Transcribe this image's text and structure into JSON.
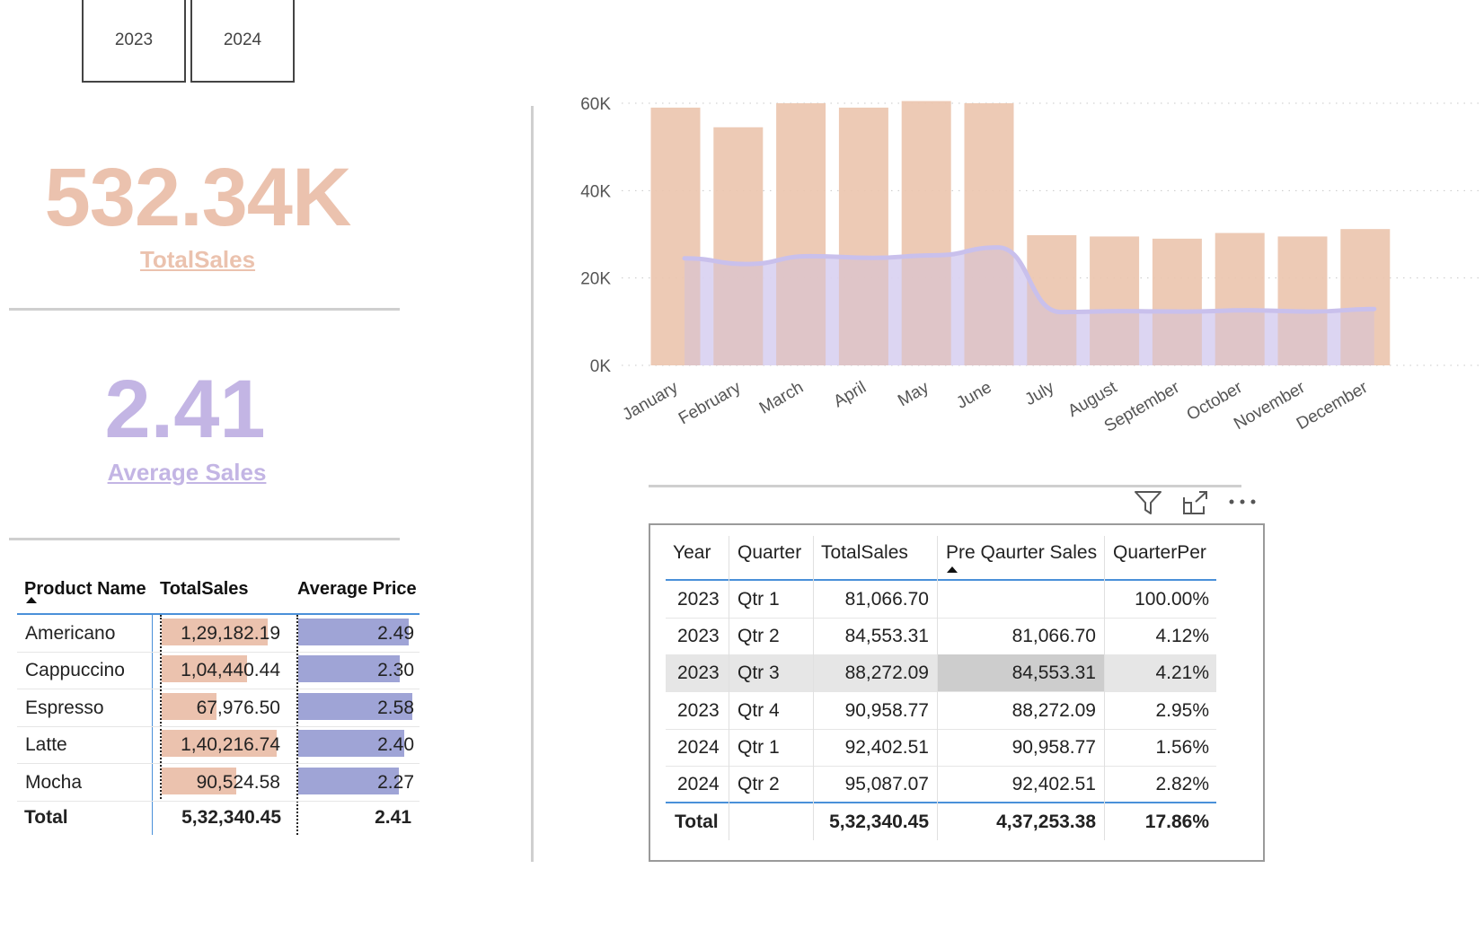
{
  "slicer": {
    "years": [
      "2023",
      "2024"
    ]
  },
  "kpi_total": {
    "value": "532.34K",
    "label": "TotalSales",
    "color": "#EBC2AE"
  },
  "kpi_avg": {
    "value": "2.41",
    "label": "Average Sales",
    "color": "#C3B5E4"
  },
  "product_table": {
    "headers": [
      "Product Name",
      "TotalSales",
      "Average Price"
    ],
    "rows": [
      {
        "name": "Americano",
        "sales": "1,29,182.19",
        "sales_fill": 0.92,
        "avg": "2.49",
        "avg_fill": 0.97
      },
      {
        "name": "Cappuccino",
        "sales": "1,04,440.44",
        "sales_fill": 0.74,
        "avg": "2.30",
        "avg_fill": 0.89
      },
      {
        "name": "Espresso",
        "sales": "67,976.50",
        "sales_fill": 0.48,
        "avg": "2.58",
        "avg_fill": 1.0
      },
      {
        "name": "Latte",
        "sales": "1,40,216.74",
        "sales_fill": 1.0,
        "avg": "2.40",
        "avg_fill": 0.93
      },
      {
        "name": "Mocha",
        "sales": "90,524.58",
        "sales_fill": 0.65,
        "avg": "2.27",
        "avg_fill": 0.88
      }
    ],
    "total": {
      "label": "Total",
      "sales": "5,32,340.45",
      "avg": "2.41"
    },
    "sales_bar_color": "#EBC2AE",
    "avg_bar_color": "#9FA4D6"
  },
  "chart_data": {
    "type": "bar",
    "categories": [
      "January",
      "February",
      "March",
      "April",
      "May",
      "June",
      "July",
      "August",
      "September",
      "October",
      "November",
      "December"
    ],
    "series": [
      {
        "values": [
          59000,
          54500,
          60000,
          59000,
          60500,
          60000,
          29800,
          29500,
          29000,
          30300,
          29500,
          31200
        ],
        "color": "#EBC5AF"
      },
      {
        "type": "line",
        "values": [
          24500,
          23200,
          25000,
          24600,
          25200,
          27000,
          12200,
          12400,
          12300,
          12600,
          12300,
          12900
        ],
        "color": "#C9C0EC"
      }
    ],
    "yticks": [
      "0K",
      "20K",
      "40K",
      "60K"
    ],
    "ylim": [
      0,
      62000
    ],
    "grid": true
  },
  "quarter_table": {
    "headers": [
      "Year",
      "Quarter",
      "TotalSales",
      "Pre Qaurter Sales",
      "QuarterPer"
    ],
    "rows": [
      {
        "year": "2023",
        "quarter": "Qtr 1",
        "sales": "81,066.70",
        "pre": "",
        "per": "100.00%"
      },
      {
        "year": "2023",
        "quarter": "Qtr 2",
        "sales": "84,553.31",
        "pre": "81,066.70",
        "per": "4.12%"
      },
      {
        "year": "2023",
        "quarter": "Qtr 3",
        "sales": "88,272.09",
        "pre": "84,553.31",
        "per": "4.21%"
      },
      {
        "year": "2023",
        "quarter": "Qtr 4",
        "sales": "90,958.77",
        "pre": "88,272.09",
        "per": "2.95%"
      },
      {
        "year": "2024",
        "quarter": "Qtr 1",
        "sales": "92,402.51",
        "pre": "90,958.77",
        "per": "1.56%"
      },
      {
        "year": "2024",
        "quarter": "Qtr 2",
        "sales": "95,087.07",
        "pre": "92,402.51",
        "per": "2.82%"
      }
    ],
    "total": {
      "label": "Total",
      "sales": "5,32,340.45",
      "pre": "4,37,253.38",
      "per": "17.86%"
    },
    "highlight_row": 2
  }
}
